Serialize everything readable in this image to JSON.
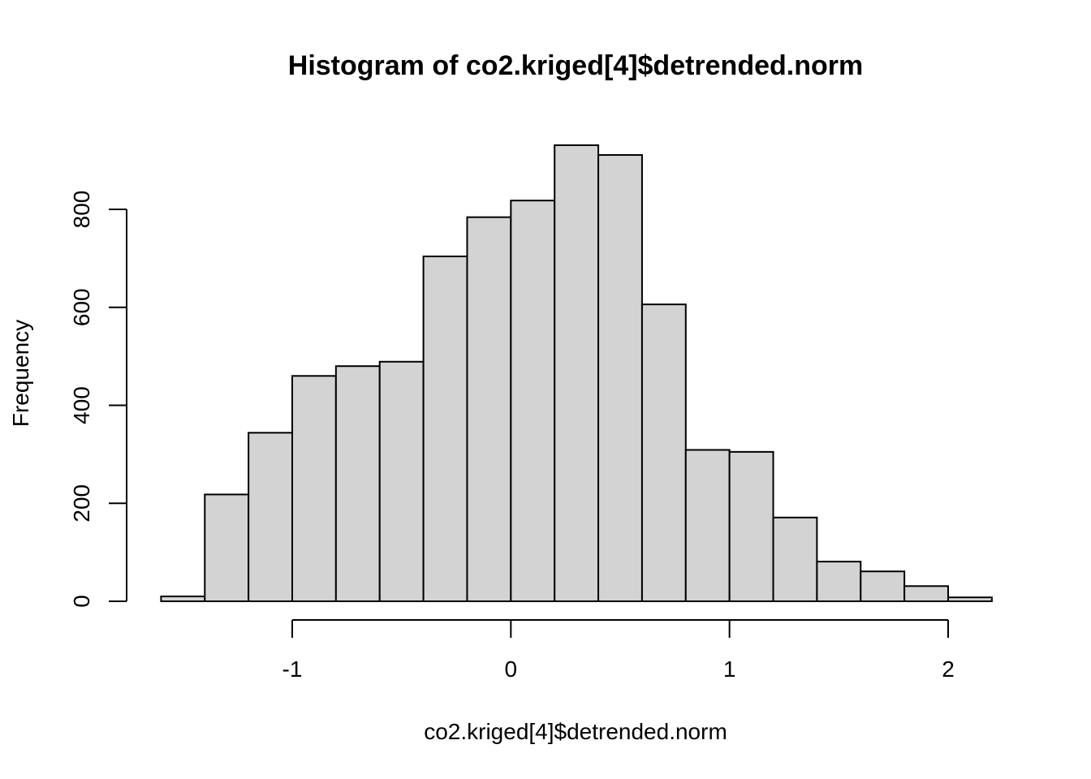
{
  "chart_data": {
    "type": "bar",
    "title": "Histogram of co2.kriged[4]$detrended.norm",
    "xlabel": "co2.kriged[4]$detrended.norm",
    "ylabel": "Frequency",
    "bin_edges": [
      -1.6,
      -1.4,
      -1.2,
      -1.0,
      -0.8,
      -0.6,
      -0.4,
      -0.2,
      0.0,
      0.2,
      0.4,
      0.6,
      0.8,
      1.0,
      1.2,
      1.4,
      1.6,
      1.8,
      2.0,
      2.2
    ],
    "values": [
      10,
      218,
      344,
      460,
      480,
      489,
      704,
      784,
      818,
      931,
      911,
      606,
      309,
      305,
      171,
      81,
      61,
      31,
      8
    ],
    "x_ticks": [
      -1,
      0,
      1,
      2
    ],
    "x_tick_labels": [
      "-1",
      "0",
      "1",
      "2"
    ],
    "y_ticks": [
      0,
      200,
      400,
      600,
      800
    ],
    "y_tick_labels": [
      "0",
      "200",
      "400",
      "600",
      "800"
    ],
    "xlim": [
      -1.6,
      2.2
    ],
    "ylim": [
      0,
      800
    ],
    "grid": false,
    "bar_color": "#d3d3d3",
    "bar_border_color": "#000000"
  }
}
